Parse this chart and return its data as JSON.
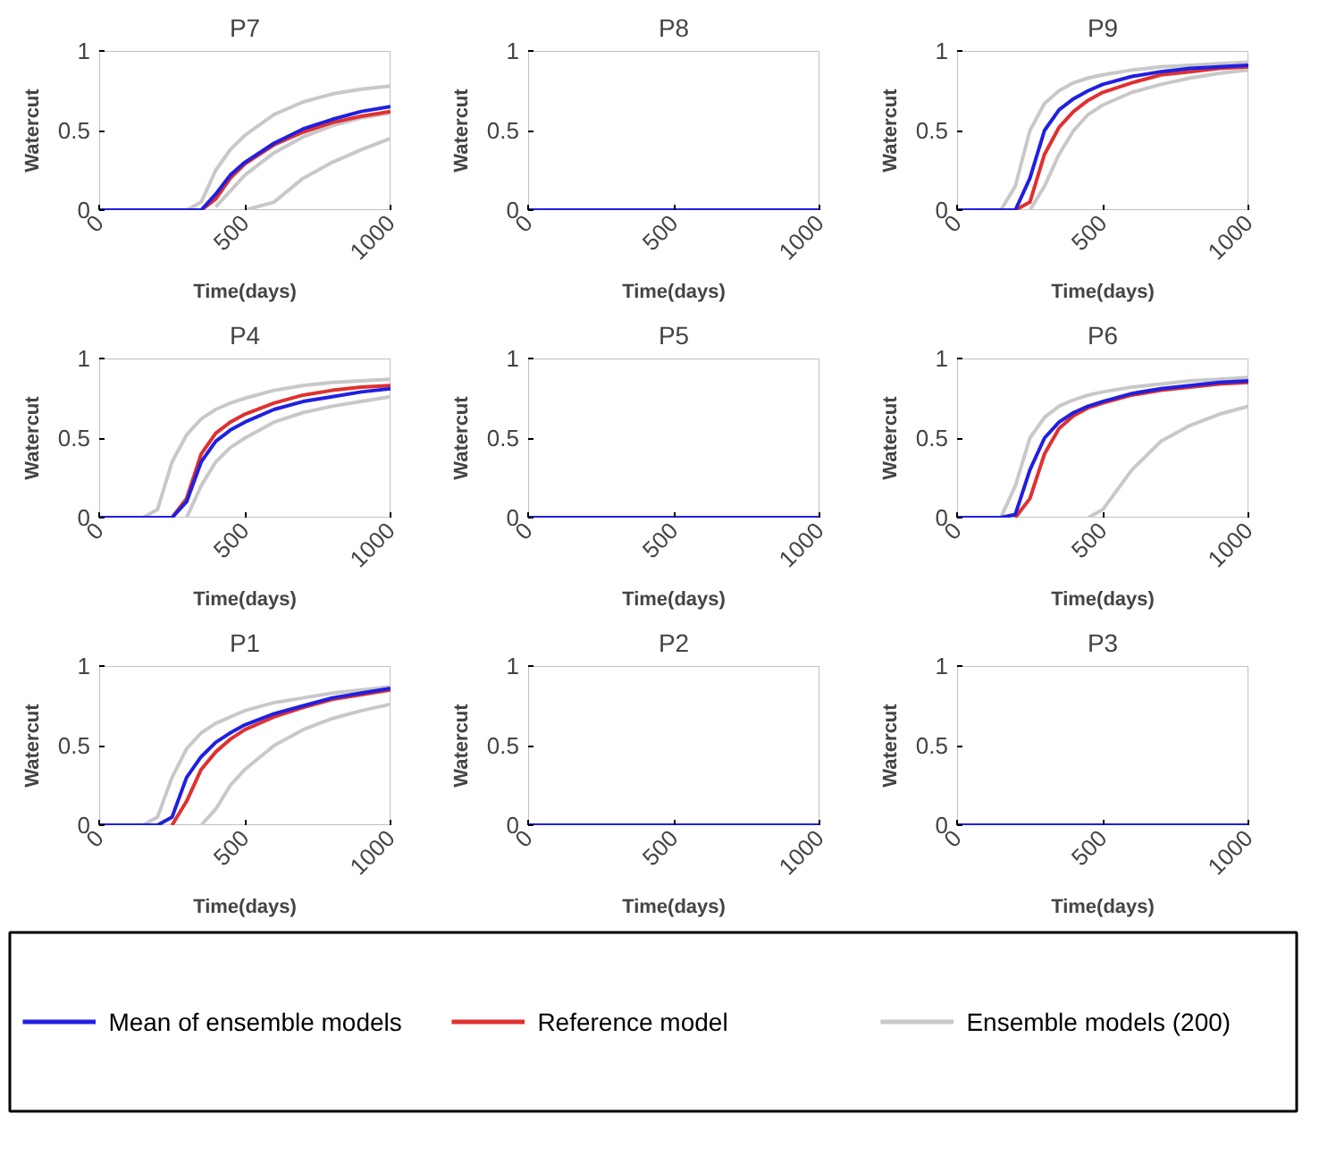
{
  "chart_data": [
    {
      "type": "line",
      "title": "P7",
      "xlabel": "Time(days)",
      "ylabel": "Watercut",
      "xlim": [
        0,
        1000
      ],
      "ylim": [
        0,
        1
      ],
      "xticks": [
        0,
        500,
        1000
      ],
      "yticks": [
        0,
        0.5,
        1
      ],
      "grid": false,
      "legend": "bottom",
      "marker": "none",
      "line_style": "solid",
      "x": [
        0,
        150,
        200,
        250,
        300,
        350,
        400,
        450,
        500,
        600,
        700,
        800,
        900,
        1000
      ],
      "series": [
        {
          "name": "Ensemble models (200)",
          "color": "#c8c8c8",
          "values": [
            null,
            null,
            null,
            null,
            0,
            0.05,
            0.25,
            0.38,
            0.47,
            0.6,
            0.68,
            0.73,
            0.76,
            0.78
          ]
        },
        {
          "color": "#c8c8c8",
          "values": [
            null,
            null,
            null,
            null,
            null,
            null,
            null,
            null,
            0,
            0.05,
            0.2,
            0.3,
            0.38,
            0.45
          ]
        },
        {
          "color": "#c8c8c8",
          "values": [
            null,
            null,
            null,
            null,
            null,
            null,
            0.02,
            0.12,
            0.22,
            0.36,
            0.46,
            0.53,
            0.58,
            0.61
          ]
        },
        {
          "name": "Reference model",
          "color": "#e03030",
          "values": [
            null,
            null,
            null,
            null,
            null,
            0,
            0.07,
            0.2,
            0.29,
            0.41,
            0.49,
            0.55,
            0.59,
            0.62
          ]
        },
        {
          "name": "Mean of ensemble models",
          "color": "#2020e0",
          "values": [
            0,
            0,
            0,
            0,
            0,
            0,
            0.1,
            0.22,
            0.3,
            0.42,
            0.51,
            0.57,
            0.62,
            0.65
          ]
        }
      ]
    },
    {
      "type": "line",
      "title": "P8",
      "xlabel": "Time(days)",
      "ylabel": "Watercut",
      "xlim": [
        0,
        1000
      ],
      "ylim": [
        0,
        1
      ],
      "xticks": [
        0,
        500,
        1000
      ],
      "yticks": [
        0,
        0.5,
        1
      ],
      "grid": false,
      "marker": "none",
      "line_style": "solid",
      "x": [
        0,
        1000
      ],
      "series": [
        {
          "color": "#2020e0",
          "values": [
            0,
            0
          ]
        }
      ]
    },
    {
      "type": "line",
      "title": "P9",
      "xlabel": "Time(days)",
      "ylabel": "Watercut",
      "xlim": [
        0,
        1000
      ],
      "ylim": [
        0,
        1
      ],
      "xticks": [
        0,
        500,
        1000
      ],
      "yticks": [
        0,
        0.5,
        1
      ],
      "grid": false,
      "marker": "none",
      "line_style": "solid",
      "x": [
        0,
        150,
        200,
        250,
        300,
        350,
        400,
        450,
        500,
        600,
        700,
        800,
        900,
        1000
      ],
      "series": [
        {
          "color": "#c8c8c8",
          "values": [
            null,
            0,
            0.15,
            0.5,
            0.67,
            0.75,
            0.8,
            0.83,
            0.85,
            0.88,
            0.9,
            0.91,
            0.92,
            0.93
          ]
        },
        {
          "color": "#c8c8c8",
          "values": [
            null,
            null,
            null,
            0,
            0.15,
            0.35,
            0.5,
            0.6,
            0.66,
            0.74,
            0.79,
            0.83,
            0.86,
            0.88
          ]
        },
        {
          "color": "#e03030",
          "values": [
            null,
            null,
            0,
            0.05,
            0.35,
            0.52,
            0.62,
            0.69,
            0.74,
            0.8,
            0.85,
            0.87,
            0.89,
            0.9
          ]
        },
        {
          "color": "#2020e0",
          "values": [
            0,
            0,
            0,
            0.2,
            0.5,
            0.63,
            0.7,
            0.75,
            0.79,
            0.84,
            0.87,
            0.89,
            0.9,
            0.91
          ]
        }
      ]
    },
    {
      "type": "line",
      "title": "P4",
      "xlabel": "Time(days)",
      "ylabel": "Watercut",
      "xlim": [
        0,
        1000
      ],
      "ylim": [
        0,
        1
      ],
      "xticks": [
        0,
        500,
        1000
      ],
      "yticks": [
        0,
        0.5,
        1
      ],
      "grid": false,
      "marker": "none",
      "line_style": "solid",
      "x": [
        0,
        150,
        200,
        250,
        300,
        350,
        400,
        450,
        500,
        600,
        700,
        800,
        900,
        1000
      ],
      "series": [
        {
          "color": "#c8c8c8",
          "values": [
            null,
            0,
            0.05,
            0.35,
            0.52,
            0.62,
            0.68,
            0.72,
            0.75,
            0.8,
            0.83,
            0.85,
            0.86,
            0.87
          ]
        },
        {
          "color": "#c8c8c8",
          "values": [
            null,
            null,
            null,
            null,
            0,
            0.2,
            0.35,
            0.44,
            0.5,
            0.6,
            0.66,
            0.7,
            0.73,
            0.76
          ]
        },
        {
          "color": "#e03030",
          "values": [
            null,
            null,
            null,
            0,
            0.12,
            0.4,
            0.53,
            0.6,
            0.65,
            0.72,
            0.77,
            0.8,
            0.82,
            0.83
          ]
        },
        {
          "color": "#2020e0",
          "values": [
            0,
            0,
            0,
            0,
            0.1,
            0.35,
            0.48,
            0.55,
            0.6,
            0.68,
            0.73,
            0.76,
            0.79,
            0.81
          ]
        }
      ]
    },
    {
      "type": "line",
      "title": "P5",
      "xlabel": "Time(days)",
      "ylabel": "Watercut",
      "xlim": [
        0,
        1000
      ],
      "ylim": [
        0,
        1
      ],
      "xticks": [
        0,
        500,
        1000
      ],
      "yticks": [
        0,
        0.5,
        1
      ],
      "grid": false,
      "marker": "none",
      "line_style": "solid",
      "x": [
        0,
        1000
      ],
      "series": [
        {
          "color": "#2020e0",
          "values": [
            0,
            0
          ]
        }
      ]
    },
    {
      "type": "line",
      "title": "P6",
      "xlabel": "Time(days)",
      "ylabel": "Watercut",
      "xlim": [
        0,
        1000
      ],
      "ylim": [
        0,
        1
      ],
      "xticks": [
        0,
        500,
        1000
      ],
      "yticks": [
        0,
        0.5,
        1
      ],
      "grid": false,
      "marker": "none",
      "line_style": "solid",
      "x": [
        0,
        150,
        200,
        250,
        300,
        350,
        400,
        450,
        500,
        600,
        700,
        800,
        900,
        1000
      ],
      "series": [
        {
          "color": "#c8c8c8",
          "values": [
            null,
            0,
            0.2,
            0.5,
            0.63,
            0.7,
            0.74,
            0.77,
            0.79,
            0.82,
            0.84,
            0.86,
            0.87,
            0.88
          ]
        },
        {
          "color": "#c8c8c8",
          "values": [
            null,
            null,
            null,
            null,
            null,
            null,
            null,
            0,
            0.05,
            0.3,
            0.48,
            0.58,
            0.65,
            0.7
          ]
        },
        {
          "color": "#e03030",
          "values": [
            null,
            null,
            0,
            0.12,
            0.4,
            0.56,
            0.64,
            0.69,
            0.72,
            0.77,
            0.8,
            0.82,
            0.84,
            0.85
          ]
        },
        {
          "color": "#2020e0",
          "values": [
            0,
            0,
            0.02,
            0.3,
            0.5,
            0.6,
            0.66,
            0.7,
            0.73,
            0.78,
            0.81,
            0.83,
            0.85,
            0.86
          ]
        }
      ]
    },
    {
      "type": "line",
      "title": "P1",
      "xlabel": "Time(days)",
      "ylabel": "Watercut",
      "xlim": [
        0,
        1000
      ],
      "ylim": [
        0,
        1
      ],
      "xticks": [
        0,
        500,
        1000
      ],
      "yticks": [
        0,
        0.5,
        1
      ],
      "grid": false,
      "marker": "none",
      "line_style": "solid",
      "x": [
        0,
        150,
        200,
        250,
        300,
        350,
        400,
        450,
        500,
        600,
        700,
        800,
        900,
        1000
      ],
      "series": [
        {
          "color": "#c8c8c8",
          "values": [
            null,
            0,
            0.05,
            0.3,
            0.48,
            0.58,
            0.64,
            0.68,
            0.72,
            0.77,
            0.8,
            0.83,
            0.85,
            0.87
          ]
        },
        {
          "color": "#c8c8c8",
          "values": [
            null,
            null,
            null,
            null,
            null,
            0,
            0.1,
            0.25,
            0.35,
            0.5,
            0.6,
            0.67,
            0.72,
            0.76
          ]
        },
        {
          "color": "#e03030",
          "values": [
            null,
            null,
            null,
            0,
            0.15,
            0.35,
            0.46,
            0.54,
            0.6,
            0.68,
            0.74,
            0.79,
            0.82,
            0.85
          ]
        },
        {
          "color": "#2020e0",
          "values": [
            0,
            0,
            0,
            0.05,
            0.3,
            0.43,
            0.52,
            0.58,
            0.63,
            0.7,
            0.75,
            0.8,
            0.83,
            0.86
          ]
        }
      ]
    },
    {
      "type": "line",
      "title": "P2",
      "xlabel": "Time(days)",
      "ylabel": "Watercut",
      "xlim": [
        0,
        1000
      ],
      "ylim": [
        0,
        1
      ],
      "xticks": [
        0,
        500,
        1000
      ],
      "yticks": [
        0,
        0.5,
        1
      ],
      "grid": false,
      "marker": "none",
      "line_style": "solid",
      "x": [
        0,
        1000
      ],
      "series": [
        {
          "color": "#2020e0",
          "values": [
            0,
            0
          ]
        }
      ]
    },
    {
      "type": "line",
      "title": "P3",
      "xlabel": "Time(days)",
      "ylabel": "Watercut",
      "xlim": [
        0,
        1000
      ],
      "ylim": [
        0,
        1
      ],
      "xticks": [
        0,
        500,
        1000
      ],
      "yticks": [
        0,
        0.5,
        1
      ],
      "grid": false,
      "marker": "none",
      "line_style": "solid",
      "x": [
        0,
        1000
      ],
      "series": [
        {
          "color": "#2020e0",
          "values": [
            0,
            0
          ]
        }
      ]
    }
  ]
}
